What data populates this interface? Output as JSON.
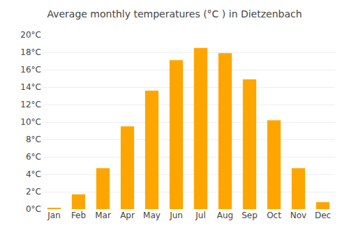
{
  "chart_data": {
    "type": "bar",
    "title": "Average monthly temperatures (°C ) in Dietzenbach",
    "categories": [
      "Jan",
      "Feb",
      "Mar",
      "Apr",
      "May",
      "Jun",
      "Jul",
      "Aug",
      "Sep",
      "Oct",
      "Nov",
      "Dec"
    ],
    "values": [
      0.1,
      1.7,
      4.7,
      9.5,
      13.6,
      17.1,
      18.5,
      17.9,
      14.9,
      10.2,
      4.7,
      0.8
    ],
    "color": "#FFA500",
    "ylim": [
      0,
      20
    ],
    "yticks": [
      {
        "value": 0,
        "label": "0°C"
      },
      {
        "value": 2,
        "label": "2°C"
      },
      {
        "value": 4,
        "label": "4°C"
      },
      {
        "value": 6,
        "label": "6°C"
      },
      {
        "value": 8,
        "label": "8°C"
      },
      {
        "value": 10,
        "label": "10°C"
      },
      {
        "value": 12,
        "label": "12°C"
      },
      {
        "value": 14,
        "label": "14°C"
      },
      {
        "value": 16,
        "label": "16°C"
      },
      {
        "value": 18,
        "label": "18°C"
      },
      {
        "value": 20,
        "label": "20°C"
      }
    ],
    "grid": true
  }
}
